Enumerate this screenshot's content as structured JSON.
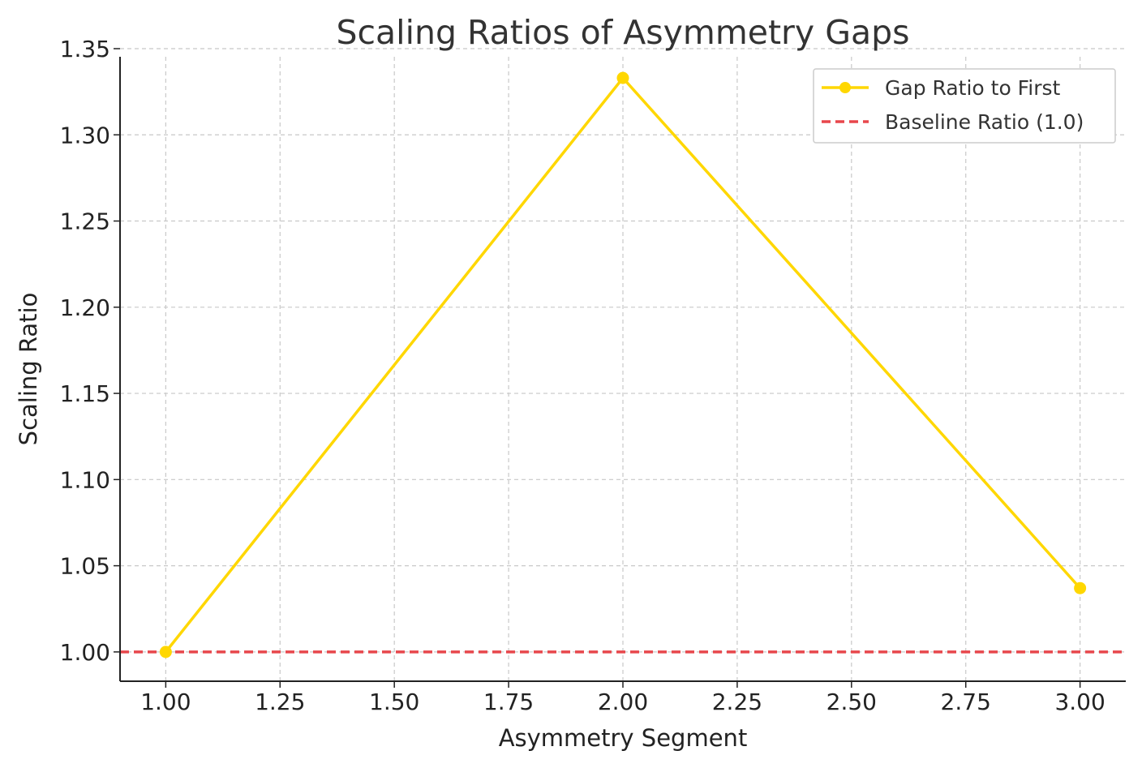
{
  "chart_data": {
    "type": "line",
    "title": "Scaling Ratios of Asymmetry Gaps",
    "xlabel": "Asymmetry Segment",
    "ylabel": "Scaling Ratio",
    "xlim": [
      0.9,
      3.1
    ],
    "ylim": [
      0.983,
      1.35
    ],
    "xticks": [
      1.0,
      1.25,
      1.5,
      1.75,
      2.0,
      2.25,
      2.5,
      2.75,
      3.0
    ],
    "xtick_labels": [
      "1.00",
      "1.25",
      "1.50",
      "1.75",
      "2.00",
      "2.25",
      "2.50",
      "2.75",
      "3.00"
    ],
    "yticks": [
      1.0,
      1.05,
      1.1,
      1.15,
      1.2,
      1.25,
      1.3,
      1.35
    ],
    "ytick_labels": [
      "1.00",
      "1.05",
      "1.10",
      "1.15",
      "1.20",
      "1.25",
      "1.30",
      "1.35"
    ],
    "grid": true,
    "legend_position": "top-right",
    "series": [
      {
        "name": "Gap Ratio to First",
        "color": "#FFD700",
        "marker": "circle",
        "x": [
          1.0,
          2.0,
          3.0
        ],
        "y": [
          1.0,
          1.333,
          1.037
        ]
      }
    ],
    "reference_lines": [
      {
        "name": "Baseline Ratio (1.0)",
        "color": "#E8474C",
        "style": "dashed",
        "y": 1.0
      }
    ]
  }
}
